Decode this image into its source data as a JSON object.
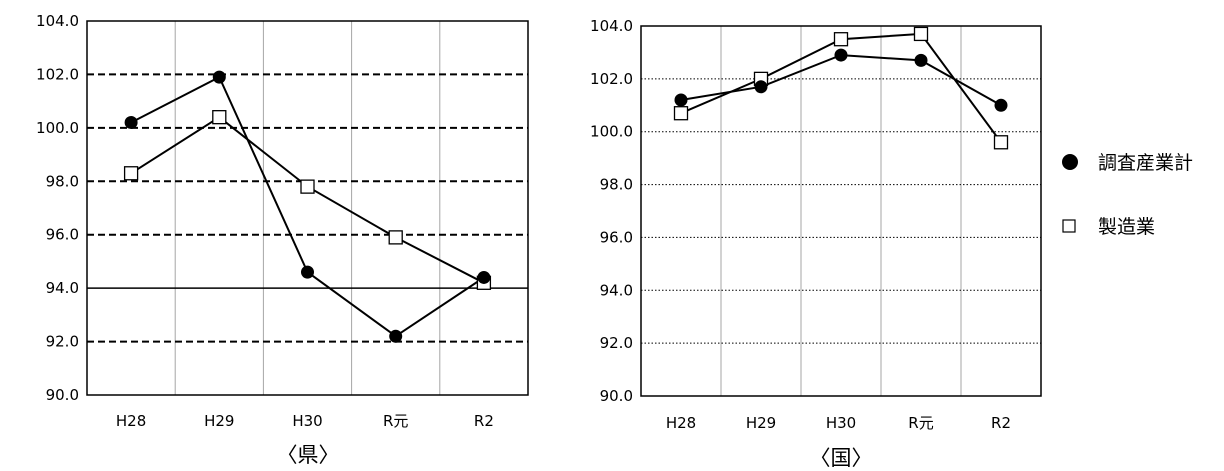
{
  "legend": {
    "series1": {
      "marker": "●",
      "label": "調査産業計"
    },
    "series2": {
      "marker": "□",
      "label": "製造業"
    }
  },
  "chart_data": [
    {
      "type": "line",
      "caption": "〈県〉",
      "categories": [
        "H28",
        "H29",
        "H30",
        "R元",
        "R2"
      ],
      "ylim": [
        90.0,
        104.0
      ],
      "ytick_step": 2.0,
      "yticks": [
        "90.0",
        "92.0",
        "94.0",
        "96.0",
        "98.0",
        "100.0",
        "102.0",
        "104.0"
      ],
      "reference_line": 94.0,
      "grid": "dashed horizontal",
      "series": [
        {
          "name": "調査産業計",
          "marker": "filled-circle",
          "values": [
            100.2,
            101.9,
            94.6,
            92.2,
            94.4
          ]
        },
        {
          "name": "製造業",
          "marker": "open-square",
          "values": [
            98.3,
            100.4,
            97.8,
            95.9,
            94.2
          ]
        }
      ]
    },
    {
      "type": "line",
      "caption": "〈国〉",
      "categories": [
        "H28",
        "H29",
        "H30",
        "R元",
        "R2"
      ],
      "ylim": [
        90.0,
        104.0
      ],
      "ytick_step": 2.0,
      "yticks": [
        "90.0",
        "92.0",
        "94.0",
        "96.0",
        "98.0",
        "100.0",
        "102.0",
        "104.0"
      ],
      "grid": "dotted horizontal",
      "series": [
        {
          "name": "調査産業計",
          "marker": "filled-circle",
          "values": [
            101.2,
            101.7,
            102.9,
            102.7,
            101.0
          ]
        },
        {
          "name": "製造業",
          "marker": "open-square",
          "values": [
            100.7,
            102.0,
            103.5,
            103.7,
            99.6
          ]
        }
      ]
    }
  ]
}
